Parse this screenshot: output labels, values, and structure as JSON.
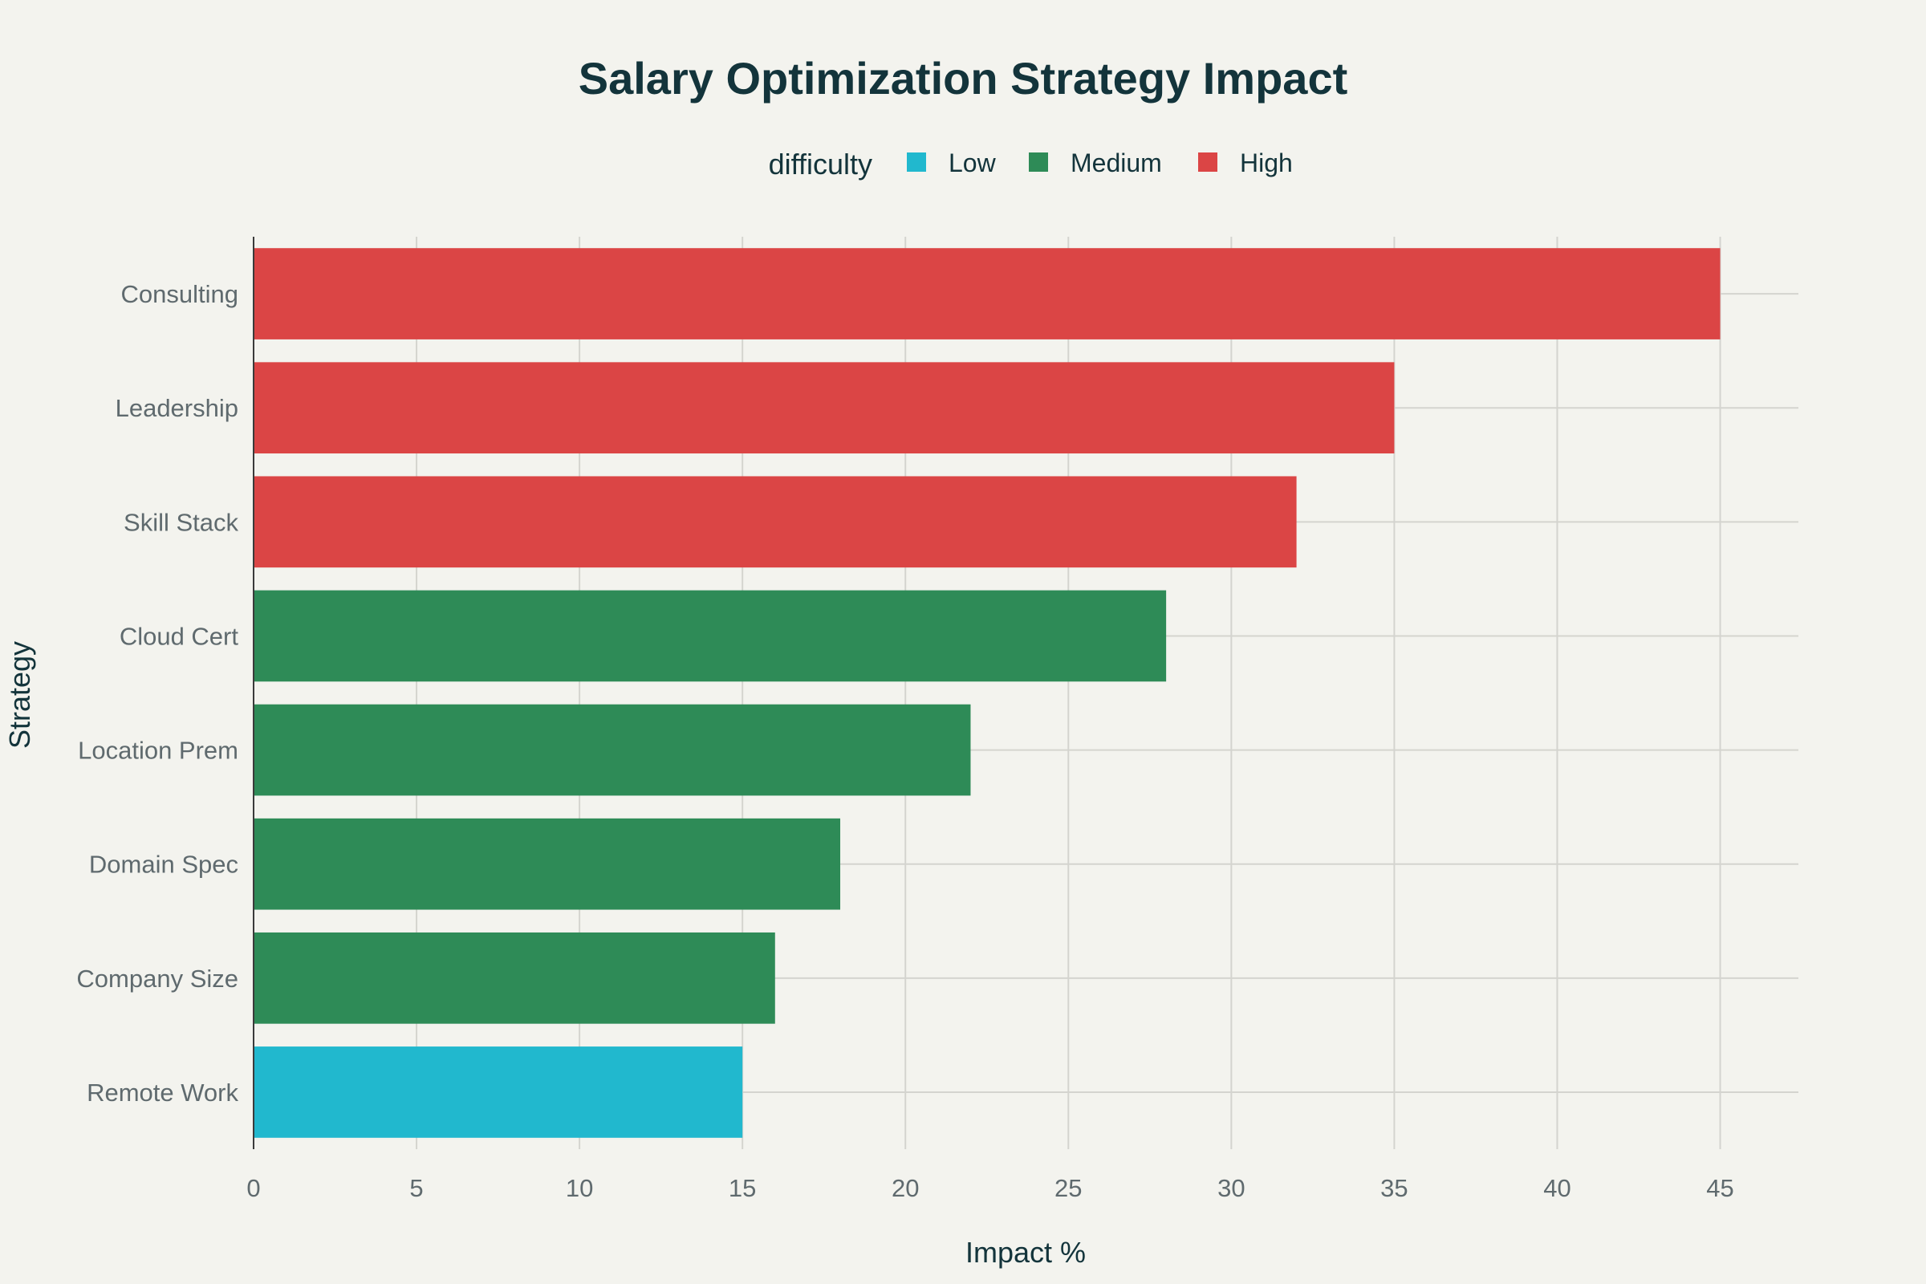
{
  "chart_data": {
    "type": "bar",
    "orientation": "horizontal",
    "title": "Salary Optimization Strategy Impact",
    "xlabel": "Impact %",
    "ylabel": "Strategy",
    "xlim": [
      0,
      47.4
    ],
    "xticks": [
      0,
      5,
      10,
      15,
      20,
      25,
      30,
      35,
      40,
      45
    ],
    "grid": true,
    "legend": {
      "title": "difficulty",
      "placement": "top-center",
      "entries": [
        {
          "name": "Low",
          "color": "#21b8ce"
        },
        {
          "name": "Medium",
          "color": "#2e8b57"
        },
        {
          "name": "High",
          "color": "#db4545"
        }
      ]
    },
    "categories": [
      "Consulting",
      "Leadership",
      "Skill Stack",
      "Cloud Cert",
      "Location Prem",
      "Domain Spec",
      "Company Size",
      "Remote Work"
    ],
    "values": [
      45,
      35,
      32,
      28,
      22,
      18,
      16,
      15
    ],
    "difficulty": [
      "High",
      "High",
      "High",
      "Medium",
      "Medium",
      "Medium",
      "Medium",
      "Low"
    ]
  }
}
